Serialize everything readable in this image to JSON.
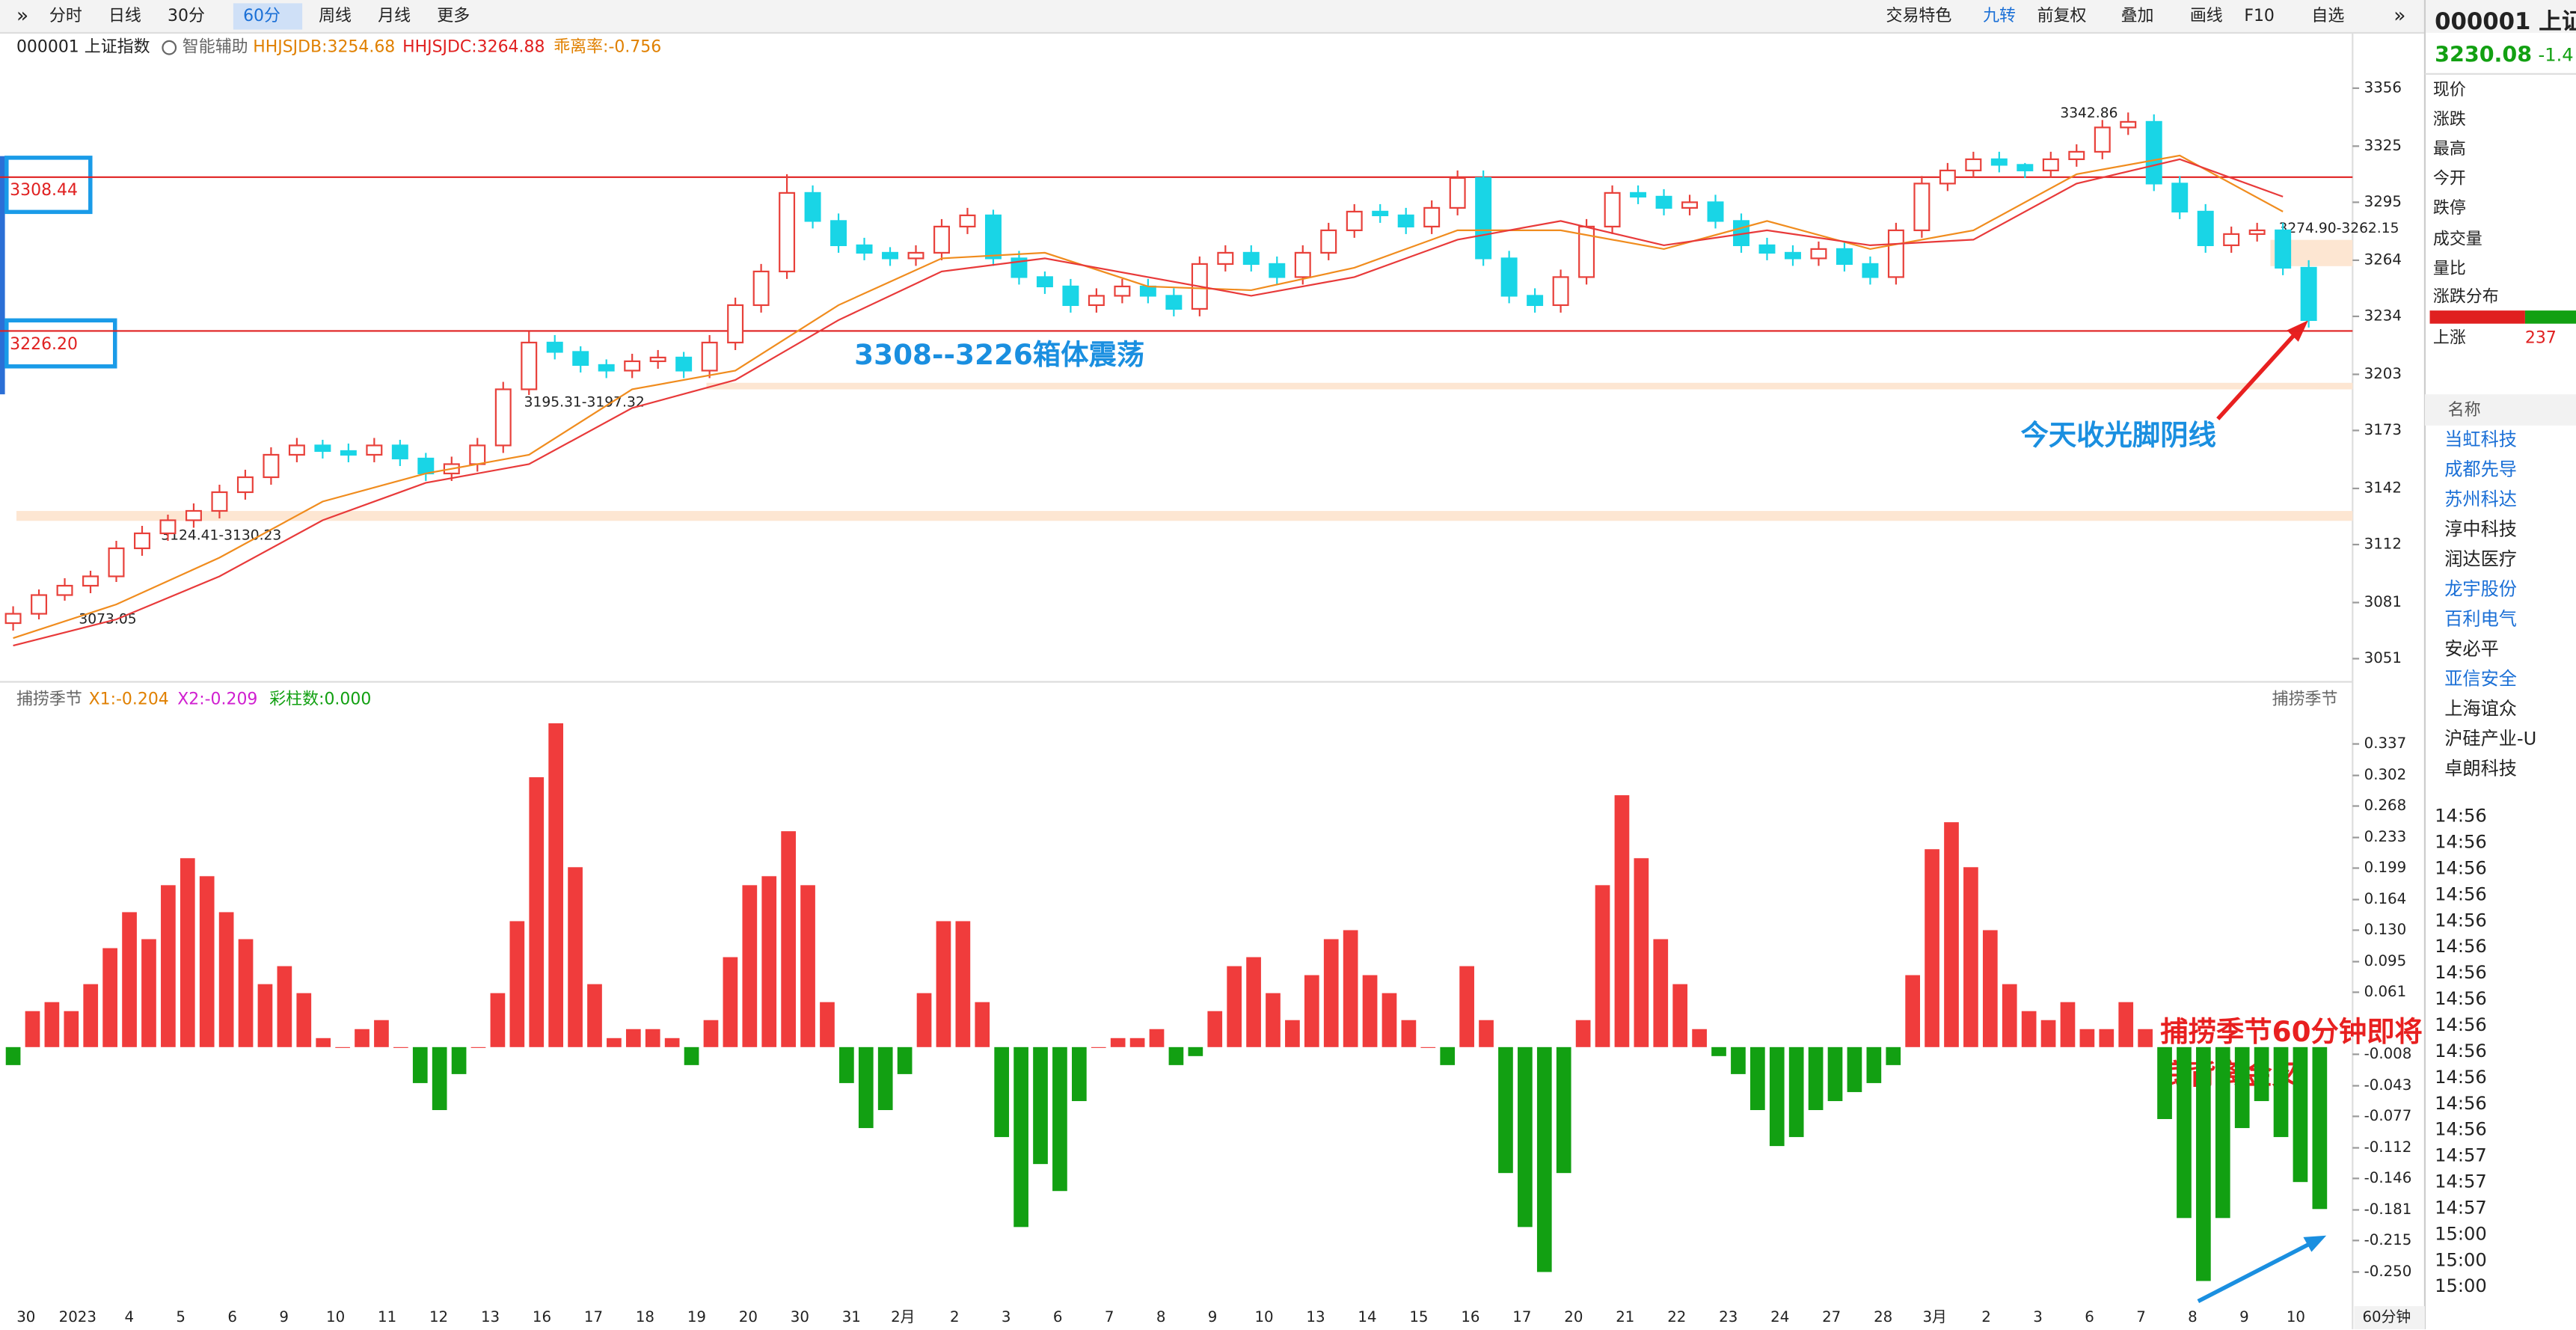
{
  "toolbar": {
    "left": [
      "分时",
      "日线",
      "30分",
      "60分",
      "周线",
      "月线",
      "更多"
    ],
    "active": 3,
    "right": [
      "交易特色",
      "九转",
      "前复权",
      "叠加",
      "画线",
      "F10",
      "自选"
    ]
  },
  "header": {
    "symbol": "000001 上证指数",
    "assist": "智能辅助",
    "ind1": "HHJSJDB:3254.68",
    "ind2": "HHJSJDC:3264.88",
    "ind3": "乖离率:-0.756"
  },
  "chart_data": [
    {
      "type": "candlestick",
      "ylim": [
        3043,
        3368
      ],
      "yticks": [
        3356,
        3325,
        3295,
        3264,
        3234,
        3203,
        3173,
        3142,
        3112,
        3081,
        3051
      ],
      "up_color": "#e8403a",
      "down_color": "#19d5e6",
      "ohlc": [
        [
          3070,
          3079,
          3066,
          3075
        ],
        [
          3075,
          3088,
          3072,
          3085
        ],
        [
          3085,
          3094,
          3082,
          3090
        ],
        [
          3090,
          3098,
          3086,
          3095
        ],
        [
          3095,
          3114,
          3092,
          3110
        ],
        [
          3110,
          3122,
          3106,
          3118
        ],
        [
          3118,
          3128,
          3114,
          3125
        ],
        [
          3125,
          3134,
          3121,
          3130
        ],
        [
          3130,
          3144,
          3126,
          3140
        ],
        [
          3140,
          3152,
          3136,
          3148
        ],
        [
          3148,
          3164,
          3144,
          3160
        ],
        [
          3160,
          3169,
          3156,
          3165
        ],
        [
          3165,
          3168,
          3158,
          3162
        ],
        [
          3162,
          3166,
          3156,
          3160
        ],
        [
          3160,
          3169,
          3156,
          3165
        ],
        [
          3165,
          3168,
          3154,
          3158
        ],
        [
          3158,
          3161,
          3146,
          3150
        ],
        [
          3150,
          3159,
          3146,
          3155
        ],
        [
          3155,
          3169,
          3151,
          3165
        ],
        [
          3165,
          3199,
          3161,
          3195
        ],
        [
          3195,
          3226,
          3192,
          3220
        ],
        [
          3220,
          3224,
          3211,
          3215
        ],
        [
          3215,
          3218,
          3204,
          3208
        ],
        [
          3208,
          3211,
          3201,
          3205
        ],
        [
          3205,
          3214,
          3201,
          3210
        ],
        [
          3210,
          3216,
          3206,
          3212
        ],
        [
          3212,
          3215,
          3201,
          3205
        ],
        [
          3205,
          3224,
          3201,
          3220
        ],
        [
          3220,
          3244,
          3216,
          3240
        ],
        [
          3240,
          3262,
          3236,
          3258
        ],
        [
          3258,
          3310,
          3254,
          3300
        ],
        [
          3300,
          3304,
          3281,
          3285
        ],
        [
          3285,
          3289,
          3268,
          3272
        ],
        [
          3272,
          3276,
          3264,
          3268
        ],
        [
          3268,
          3271,
          3261,
          3265
        ],
        [
          3265,
          3272,
          3261,
          3268
        ],
        [
          3268,
          3286,
          3264,
          3282
        ],
        [
          3282,
          3292,
          3278,
          3288
        ],
        [
          3288,
          3291,
          3261,
          3265
        ],
        [
          3265,
          3269,
          3251,
          3255
        ],
        [
          3255,
          3258,
          3246,
          3250
        ],
        [
          3250,
          3254,
          3236,
          3240
        ],
        [
          3240,
          3249,
          3236,
          3245
        ],
        [
          3245,
          3254,
          3241,
          3250
        ],
        [
          3250,
          3254,
          3241,
          3245
        ],
        [
          3245,
          3249,
          3234,
          3238
        ],
        [
          3238,
          3266,
          3234,
          3262
        ],
        [
          3262,
          3272,
          3258,
          3268
        ],
        [
          3268,
          3272,
          3258,
          3262
        ],
        [
          3262,
          3266,
          3251,
          3255
        ],
        [
          3255,
          3272,
          3251,
          3268
        ],
        [
          3268,
          3284,
          3264,
          3280
        ],
        [
          3280,
          3294,
          3276,
          3290
        ],
        [
          3290,
          3294,
          3284,
          3288
        ],
        [
          3288,
          3292,
          3278,
          3282
        ],
        [
          3282,
          3296,
          3278,
          3292
        ],
        [
          3292,
          3312,
          3288,
          3308
        ],
        [
          3308,
          3312,
          3261,
          3265
        ],
        [
          3265,
          3269,
          3241,
          3245
        ],
        [
          3245,
          3249,
          3236,
          3240
        ],
        [
          3240,
          3259,
          3236,
          3255
        ],
        [
          3255,
          3286,
          3251,
          3282
        ],
        [
          3282,
          3304,
          3278,
          3300
        ],
        [
          3300,
          3304,
          3294,
          3298
        ],
        [
          3298,
          3302,
          3288,
          3292
        ],
        [
          3292,
          3299,
          3288,
          3295
        ],
        [
          3295,
          3299,
          3281,
          3285
        ],
        [
          3285,
          3289,
          3268,
          3272
        ],
        [
          3272,
          3276,
          3264,
          3268
        ],
        [
          3268,
          3272,
          3261,
          3265
        ],
        [
          3265,
          3274,
          3261,
          3270
        ],
        [
          3270,
          3274,
          3258,
          3262
        ],
        [
          3262,
          3266,
          3251,
          3255
        ],
        [
          3255,
          3284,
          3251,
          3280
        ],
        [
          3280,
          3309,
          3276,
          3305
        ],
        [
          3305,
          3316,
          3301,
          3312
        ],
        [
          3312,
          3322,
          3308,
          3318
        ],
        [
          3318,
          3322,
          3311,
          3315
        ],
        [
          3315,
          3316,
          3308,
          3312
        ],
        [
          3312,
          3322,
          3308,
          3318
        ],
        [
          3318,
          3326,
          3314,
          3322
        ],
        [
          3322,
          3339,
          3318,
          3335
        ],
        [
          3335,
          3343,
          3331,
          3338
        ],
        [
          3338,
          3342,
          3301,
          3305
        ],
        [
          3305,
          3309,
          3286,
          3290
        ],
        [
          3290,
          3294,
          3268,
          3272
        ],
        [
          3272,
          3282,
          3268,
          3278
        ],
        [
          3278,
          3284,
          3274,
          3280
        ],
        [
          3280,
          3284,
          3256,
          3260
        ],
        [
          3260,
          3264,
          3228,
          3232
        ]
      ],
      "ma_lines": [
        {
          "color": "#f08c1e",
          "x": [
            0,
            4,
            8,
            12,
            16,
            20,
            24,
            28,
            32,
            36,
            40,
            44,
            48,
            52,
            56,
            60,
            64,
            68,
            72,
            76,
            80,
            84,
            88
          ],
          "values": [
            3062,
            3080,
            3105,
            3135,
            3150,
            3160,
            3195,
            3205,
            3240,
            3265,
            3268,
            3250,
            3248,
            3260,
            3280,
            3280,
            3270,
            3285,
            3270,
            3280,
            3310,
            3320,
            3290
          ]
        },
        {
          "color": "#e83a3a",
          "x": [
            0,
            4,
            8,
            12,
            16,
            20,
            24,
            28,
            32,
            36,
            40,
            44,
            48,
            52,
            56,
            60,
            64,
            68,
            72,
            76,
            80,
            84,
            88
          ],
          "values": [
            3058,
            3072,
            3095,
            3125,
            3145,
            3155,
            3185,
            3200,
            3232,
            3258,
            3265,
            3255,
            3245,
            3255,
            3275,
            3285,
            3272,
            3280,
            3272,
            3275,
            3305,
            3318,
            3298
          ]
        }
      ],
      "levels": [
        3308.44,
        {
          "value": 3226.2,
          "label": "3226.20"
        }
      ],
      "level_color": "#e02020",
      "annotations": [
        "3308--3226箱体震荡",
        "今天收光脚阴线"
      ],
      "price_labels": [
        "3073.05",
        "3124.41-3130.23",
        "3195.31-3197.32",
        "3342.86",
        "3274.90-3262.15"
      ]
    },
    {
      "type": "bar",
      "title": "捕捞季节",
      "legend": [
        "X1:-0.204",
        "X2:-0.209",
        "彩柱数:0.000"
      ],
      "up_color": "#f03c3c",
      "down_color": "#12a012",
      "ylim": [
        -0.288,
        0.375
      ],
      "yticks": [
        0.337,
        0.302,
        0.268,
        0.233,
        0.199,
        0.164,
        {
          "value": 0.13,
          "label": "0.130"
        },
        0.095,
        0.061,
        -0.008,
        -0.043,
        -0.077,
        -0.112,
        -0.146,
        -0.181,
        -0.215,
        {
          "value": -0.25,
          "label": "-0.250"
        }
      ],
      "values": [
        -0.02,
        0.04,
        0.05,
        0.04,
        0.07,
        0.11,
        0.15,
        0.12,
        0.18,
        0.21,
        0.19,
        0.15,
        0.12,
        0.07,
        0.09,
        0.06,
        0.01,
        0.0,
        0.02,
        0.03,
        0.0,
        -0.04,
        -0.07,
        -0.03,
        0.0,
        0.06,
        0.14,
        0.3,
        0.36,
        0.2,
        0.07,
        0.01,
        0.02,
        0.02,
        0.01,
        -0.02,
        0.03,
        0.1,
        0.18,
        0.19,
        0.24,
        0.18,
        0.05,
        -0.04,
        -0.09,
        -0.07,
        -0.03,
        0.06,
        0.14,
        0.14,
        0.05,
        -0.1,
        -0.2,
        -0.13,
        -0.16,
        -0.06,
        0.0,
        0.01,
        0.01,
        0.02,
        -0.02,
        -0.01,
        0.04,
        0.09,
        0.1,
        0.06,
        0.03,
        0.08,
        0.12,
        0.13,
        0.08,
        0.06,
        0.03,
        0.0,
        -0.02,
        0.09,
        0.03,
        -0.14,
        -0.2,
        -0.25,
        -0.14,
        0.03,
        0.18,
        0.28,
        0.21,
        0.12,
        0.07,
        0.02,
        -0.01,
        -0.03,
        -0.07,
        -0.11,
        -0.1,
        -0.07,
        -0.06,
        -0.05,
        -0.04,
        -0.02,
        0.08,
        0.22,
        0.25,
        0.2,
        0.13,
        0.07,
        0.04,
        0.03,
        0.05,
        0.02,
        0.02,
        0.05,
        0.02,
        -0.08,
        -0.19,
        -0.26,
        -0.19,
        -0.09,
        -0.06,
        -0.1,
        -0.15,
        -0.18
      ],
      "annotations": [
        "捕捞季节60分钟即将",
        "底背离金叉"
      ],
      "x_labels": [
        "30",
        "2023",
        "4",
        "5",
        "6",
        "9",
        "10",
        "11",
        "12",
        "13",
        "16",
        "17",
        "18",
        "19",
        "20",
        "30",
        "31",
        "2月",
        "2",
        "3",
        "6",
        "7",
        "8",
        "9",
        "10",
        "13",
        "14",
        "15",
        "16",
        "17",
        "20",
        "21",
        "22",
        "23",
        "24",
        "27",
        "28",
        "3月",
        "2",
        "3",
        "6",
        "7",
        "8",
        "9",
        "10"
      ],
      "period_label": "60分钟"
    }
  ],
  "sidebar": {
    "title": "000001 上证",
    "price": "3230.08",
    "change": "-1.4",
    "fields": [
      "现价",
      "涨跌",
      "最高",
      "今开",
      "跌停",
      "成交量",
      "量比",
      "涨跌分布"
    ],
    "up_label": "上涨",
    "up_count": "237",
    "list_header": "名称",
    "stocks": [
      "当虹科技",
      "成都先导",
      "苏州科达",
      "淳中科技",
      "润达医疗",
      "龙宇股份",
      "百利电气",
      "安必平",
      "亚信安全",
      "上海谊众",
      "沪硅产业-U",
      "卓朗科技"
    ],
    "times": [
      "14:56",
      "14:56",
      "14:56",
      "14:56",
      "14:56",
      "14:56",
      "14:56",
      "14:56",
      "14:56",
      "14:56",
      "14:56",
      "14:56",
      "14:56",
      "14:57",
      "14:57",
      "14:57",
      "15:00",
      "15:00",
      "15:00"
    ]
  }
}
